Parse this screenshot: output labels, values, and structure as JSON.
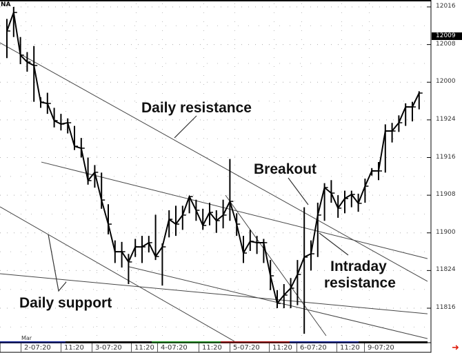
{
  "symbol": "NA",
  "month_label": "Mar",
  "chart_data": {
    "type": "bar",
    "subtype": "ohlc-price-bars-with-close-line",
    "bar_fields": [
      "high",
      "low",
      "close"
    ],
    "bars": [
      [
        120.42,
        120.16,
        120.34
      ],
      [
        120.5,
        120.3,
        120.463
      ],
      [
        120.3,
        120.12,
        120.18
      ],
      [
        120.2,
        120.07,
        120.134
      ],
      [
        120.24,
        119.87,
        120.111
      ],
      [
        119.9,
        119.83,
        119.868
      ],
      [
        119.93,
        119.79,
        119.859
      ],
      [
        119.83,
        119.7,
        119.745
      ],
      [
        119.79,
        119.68,
        119.722
      ],
      [
        119.76,
        119.66,
        119.731
      ],
      [
        119.71,
        119.55,
        119.575
      ],
      [
        119.63,
        119.5,
        119.562
      ],
      [
        119.5,
        119.32,
        119.347
      ],
      [
        119.45,
        119.3,
        119.402
      ],
      [
        119.4,
        119.16,
        119.218
      ],
      [
        119.19,
        118.99,
        119.058
      ],
      [
        118.95,
        118.8,
        118.875
      ],
      [
        118.94,
        118.77,
        118.875
      ],
      [
        118.86,
        118.66,
        118.807
      ],
      [
        118.96,
        118.84,
        118.907
      ],
      [
        118.98,
        118.8,
        118.907
      ],
      [
        118.98,
        118.87,
        118.935
      ],
      [
        119.12,
        118.82,
        118.843
      ],
      [
        118.93,
        118.65,
        118.907
      ],
      [
        119.15,
        118.97,
        119.09
      ],
      [
        119.18,
        118.98,
        119.058
      ],
      [
        119.18,
        119.02,
        119.118
      ],
      [
        119.24,
        119.13,
        119.241
      ],
      [
        119.22,
        119.08,
        119.15
      ],
      [
        119.16,
        119.02,
        119.049
      ],
      [
        119.2,
        119.05,
        119.136
      ],
      [
        119.15,
        119.0,
        119.081
      ],
      [
        119.22,
        119.03,
        119.118
      ],
      [
        119.49,
        119.08,
        119.209
      ],
      [
        119.13,
        118.98,
        119.058
      ],
      [
        118.98,
        118.8,
        118.866
      ],
      [
        119.02,
        118.88,
        118.944
      ],
      [
        118.98,
        118.86,
        118.935
      ],
      [
        118.96,
        118.8,
        118.935
      ],
      [
        118.82,
        118.62,
        118.715
      ],
      [
        118.62,
        118.5,
        118.532
      ],
      [
        118.66,
        118.5,
        118.587
      ],
      [
        118.7,
        118.5,
        118.633
      ],
      [
        118.82,
        118.52,
        118.724
      ],
      [
        119.17,
        118.33,
        118.839
      ],
      [
        118.95,
        118.75,
        118.861
      ],
      [
        119.2,
        118.84,
        119.118
      ],
      [
        119.33,
        119.08,
        119.301
      ],
      [
        119.35,
        119.2,
        119.264
      ],
      [
        119.25,
        119.1,
        119.164
      ],
      [
        119.28,
        119.13,
        119.228
      ],
      [
        119.28,
        119.17,
        119.255
      ],
      [
        119.26,
        119.14,
        119.196
      ],
      [
        119.36,
        119.2,
        119.31
      ],
      [
        119.43,
        119.38,
        119.411
      ],
      [
        119.47,
        119.35,
        119.411
      ],
      [
        119.72,
        119.4,
        119.676
      ],
      [
        119.73,
        119.6,
        119.676
      ],
      [
        119.78,
        119.67,
        119.731
      ],
      [
        119.86,
        119.71,
        119.836
      ],
      [
        119.87,
        119.74,
        119.836
      ],
      [
        119.94,
        119.82,
        119.928
      ]
    ],
    "trendlines": [
      {
        "from": [
          -1.02,
          120.262
        ],
        "to": [
          62.24,
          118.678
        ]
      },
      {
        "from": [
          5.1,
          119.47
        ],
        "to": [
          62.24,
          118.829
        ]
      },
      {
        "from": [
          -1.02,
          119.173
        ],
        "to": [
          33.67,
          118.28
        ]
      },
      {
        "from": [
          -1.02,
          118.729
        ],
        "to": [
          62.24,
          118.463
        ]
      },
      {
        "from": [
          18.06,
          118.775
        ],
        "to": [
          62.24,
          118.298
        ]
      },
      {
        "from": [
          32.35,
          119.25
        ],
        "to": [
          47.24,
          118.317
        ]
      }
    ],
    "ylim": [
      118.5,
      120.5
    ],
    "y_ticks": [
      {
        "value": 120.5,
        "label": "12016"
      },
      {
        "value": 120.25,
        "label": "12008"
      },
      {
        "value": 120.0,
        "label": "12000"
      },
      {
        "value": 119.75,
        "label": "11924"
      },
      {
        "value": 119.5,
        "label": "11916"
      },
      {
        "value": 119.25,
        "label": "11908"
      },
      {
        "value": 119.0,
        "label": "11900"
      },
      {
        "value": 118.75,
        "label": "11824"
      },
      {
        "value": 118.5,
        "label": "11816"
      }
    ],
    "current_price": {
      "value": 120.281,
      "label": "12009"
    },
    "x_ticks": [
      "2-07:20",
      "11:20",
      "3-07:20",
      "11:20",
      "4-07:20",
      "11:20",
      "5-07:20",
      "11:20",
      "6-07:20",
      "11:20",
      "9-07:20"
    ],
    "grid": "dotted",
    "annotations": [
      "Daily resistance",
      "Breakout",
      "Intraday resistance",
      "Daily support"
    ],
    "session_colors": [
      "#2030a0",
      "#111111",
      "#30a030",
      "#b02020",
      "#2030a0",
      "#111111"
    ]
  }
}
